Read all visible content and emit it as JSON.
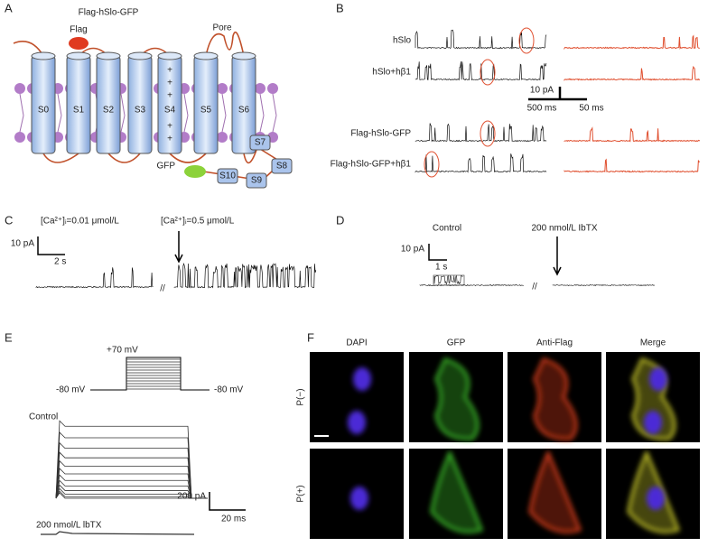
{
  "panels": {
    "a": {
      "label": "A",
      "title": "Flag-hSlo-GFP",
      "flag": "Flag",
      "pore": "Pore",
      "gfp": "GFP",
      "charge": "+",
      "segments": [
        "S0",
        "S1",
        "S2",
        "S3",
        "S4",
        "S5",
        "S6",
        "S7",
        "S8",
        "S9",
        "S10"
      ]
    },
    "b": {
      "label": "B",
      "traces": [
        "hSlo",
        "hSlo+hβ1",
        "Flag-hSlo-GFP",
        "Flag-hSlo-GFP+hβ1"
      ],
      "scale_current": "10 pA",
      "scale_time_left": "500 ms",
      "scale_time_right": "50 ms"
    },
    "c": {
      "label": "C",
      "condition_low": "[Ca²⁺]ᵢ=0.01 μmol/L",
      "condition_high": "[Ca²⁺]ᵢ=0.5 μmol/L",
      "scale_current": "10 pA",
      "scale_time": "2 s",
      "break": "//"
    },
    "d": {
      "label": "D",
      "control": "Control",
      "toxin": "200 nmol/L IbTX",
      "scale_current": "10 pA",
      "scale_time": "1 s",
      "break": "//"
    },
    "e": {
      "label": "E",
      "step_voltage": "+70 mV",
      "holding_left": "-80 mV",
      "holding_right": "-80 mV",
      "control": "Control",
      "toxin": "200 nmol/L lbTX",
      "scale_current": "200 pA",
      "scale_time": "20 ms"
    },
    "f": {
      "label": "F",
      "columns": [
        "DAPI",
        "GFP",
        "Anti-Flag",
        "Merge"
      ],
      "rows": [
        "P(−)",
        "P(+)"
      ]
    }
  }
}
